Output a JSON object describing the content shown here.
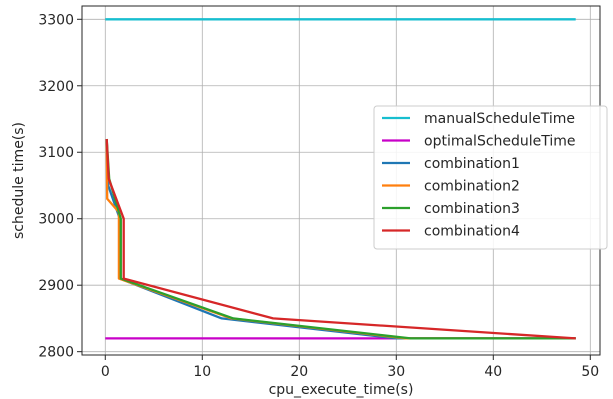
{
  "chart_data": {
    "type": "line",
    "xlabel": "cpu_execute_time(s)",
    "ylabel": "schedule time(s)",
    "xlim": [
      -2.4,
      51
    ],
    "ylim": [
      2795,
      3320
    ],
    "xticks": [
      0,
      10,
      20,
      30,
      40,
      50
    ],
    "yticks": [
      2800,
      2900,
      3000,
      3100,
      3200,
      3300
    ],
    "grid": true,
    "legend_position": "center-right",
    "series": [
      {
        "name": "manualScheduleTime",
        "color": "#17becf",
        "x": [
          0,
          48.5
        ],
        "y": [
          3300,
          3300
        ]
      },
      {
        "name": "optimalScheduleTime",
        "color": "#c800c8",
        "x": [
          0,
          48.5
        ],
        "y": [
          2820,
          2820
        ]
      },
      {
        "name": "combination1",
        "color": "#1f77b4",
        "x": [
          0.15,
          0.3,
          1.5,
          1.5,
          12,
          30,
          48.5
        ],
        "y": [
          3120,
          3050,
          3000,
          2910,
          2850,
          2820,
          2820
        ]
      },
      {
        "name": "combination2",
        "color": "#ff7f0e",
        "x": [
          0.15,
          0.2,
          1.4,
          1.4,
          13,
          31,
          48.5
        ],
        "y": [
          3120,
          3030,
          3010,
          2910,
          2850,
          2820,
          2820
        ]
      },
      {
        "name": "combination3",
        "color": "#2ca02c",
        "x": [
          0.15,
          0.4,
          1.6,
          1.6,
          13.2,
          31.5,
          48.5
        ],
        "y": [
          3120,
          3060,
          3000,
          2910,
          2850,
          2820,
          2820
        ]
      },
      {
        "name": "combination4",
        "color": "#d62728",
        "x": [
          0.15,
          0.35,
          1.9,
          1.9,
          17.3,
          48.5
        ],
        "y": [
          3120,
          3060,
          3000,
          2910,
          2850,
          2820
        ]
      }
    ]
  }
}
